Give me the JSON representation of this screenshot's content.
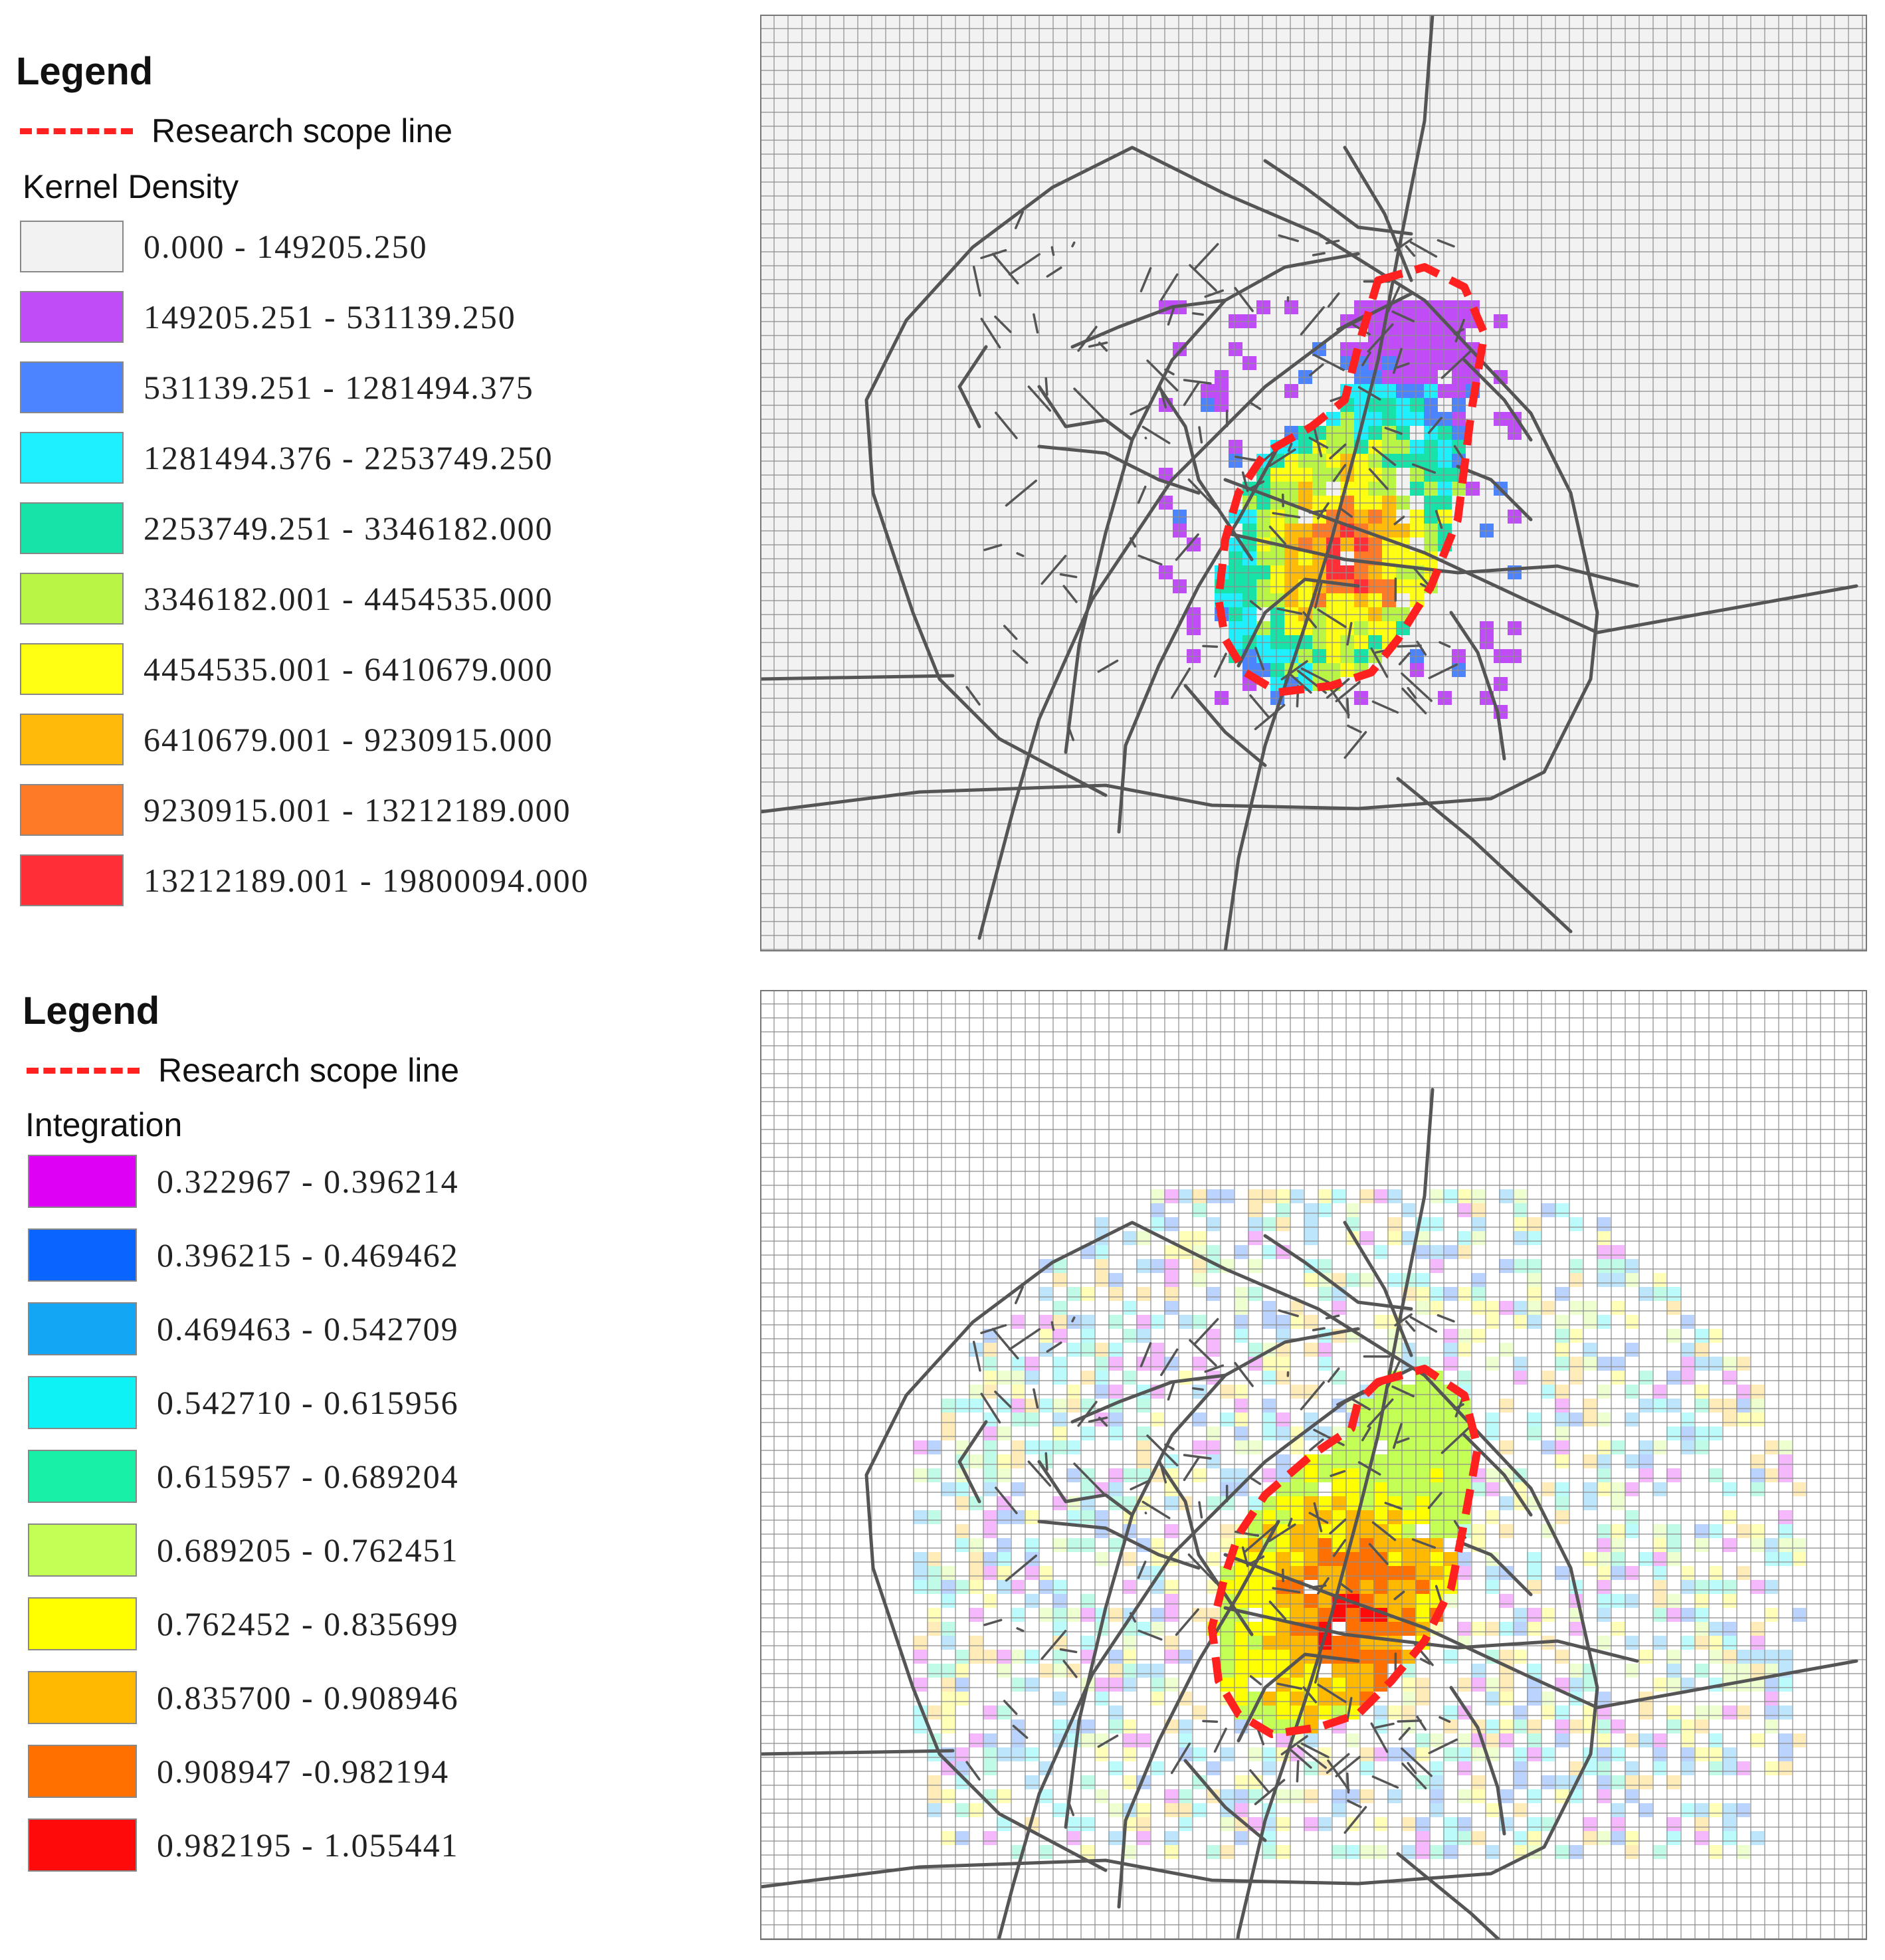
{
  "top_panel": {
    "legend_title": "Legend",
    "scope_label": "Research scope line",
    "subtitle": "Kernel Density",
    "classes": [
      {
        "label": "0.000 - 149205.250",
        "color": "#f2f2f2"
      },
      {
        "label": "149205.251 - 531139.250",
        "color": "#c04cf8"
      },
      {
        "label": "531139.251 - 1281494.375",
        "color": "#4c84ff"
      },
      {
        "label": "1281494.376 - 2253749.250",
        "color": "#1ef0ff"
      },
      {
        "label": "2253749.251 - 3346182.000",
        "color": "#17e3a8"
      },
      {
        "label": "3346182.001 - 4454535.000",
        "color": "#b8f545"
      },
      {
        "label": "4454535.001 - 6410679.000",
        "color": "#ffff14"
      },
      {
        "label": "6410679.001 - 9230915.000",
        "color": "#ffba0a"
      },
      {
        "label": "9230915.001 - 13212189.000",
        "color": "#ff7a26"
      },
      {
        "label": "13212189.001 - 19800094.000",
        "color": "#ff2e37"
      }
    ]
  },
  "bottom_panel": {
    "legend_title": "Legend",
    "scope_label": "Research scope line",
    "subtitle": "Integration",
    "classes": [
      {
        "label": "0.322967 - 0.396214",
        "color": "#dd00f4"
      },
      {
        "label": "0.396215 - 0.469462",
        "color": "#0a64ff"
      },
      {
        "label": "0.469463 - 0.542709",
        "color": "#12a6f5"
      },
      {
        "label": "0.542710 - 0.615956",
        "color": "#0ff2f5"
      },
      {
        "label": "0.615957 - 0.689204",
        "color": "#18f0a8"
      },
      {
        "label": "0.689205 - 0.762451",
        "color": "#c3ff55"
      },
      {
        "label": "0.762452 - 0.835699",
        "color": "#ffff00"
      },
      {
        "label": "0.835700 - 0.908946",
        "color": "#ffb900"
      },
      {
        "label": "0.908947 -0.982194",
        "color": "#ff7000"
      },
      {
        "label": "0.982195 - 1.055441",
        "color": "#ff0a0a"
      }
    ]
  },
  "colors": {
    "scope_line": "#ff2020",
    "roads": "#555555",
    "grid": "#8c8c8c"
  }
}
